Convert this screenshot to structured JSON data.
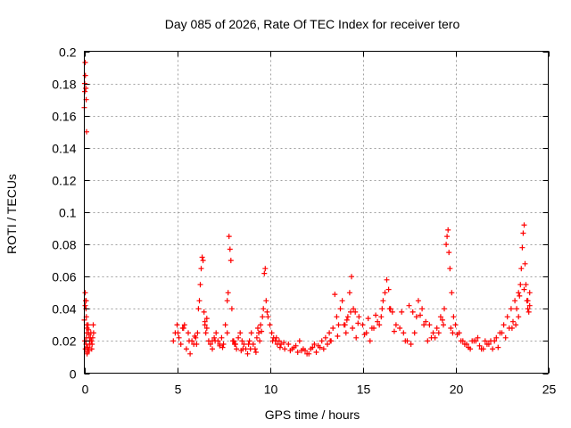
{
  "chart_data": {
    "type": "scatter",
    "title": "Day 085 of 2026, Rate Of TEC Index for receiver tero",
    "xlabel": "GPS time / hours",
    "ylabel": "ROTI / TECUs",
    "xlim": [
      0,
      25
    ],
    "ylim": [
      0,
      0.2
    ],
    "x_ticks": [
      0,
      5,
      10,
      15,
      20,
      25
    ],
    "x_tick_labels": [
      "0",
      "5",
      "10",
      "15",
      "20",
      "25"
    ],
    "y_ticks": [
      0,
      0.02,
      0.04,
      0.06,
      0.08,
      0.1,
      0.12,
      0.14,
      0.16,
      0.18,
      0.2
    ],
    "y_tick_labels": [
      "0",
      "0.02",
      "0.04",
      "0.06",
      "0.08",
      "0.1",
      "0.12",
      "0.14",
      "0.16",
      "0.18",
      "0.2"
    ],
    "grid": true,
    "legend": "none",
    "marker": "plus",
    "color": "#ff0000",
    "series": [
      {
        "x": [
          0.0,
          0.02,
          0.03,
          0.05,
          0.06,
          0.08,
          0.1,
          0.12,
          0.05,
          0.07,
          0.09,
          0.11,
          0.13,
          0.15,
          0.0,
          0.03,
          0.06,
          0.1,
          0.12,
          0.14,
          0.16,
          0.18,
          0.2,
          0.22,
          0.25,
          0.28,
          0.3,
          0.32,
          0.35,
          0.38,
          0.4,
          0.42,
          0.45,
          0.48,
          0.5,
          0.15,
          0.2,
          0.25,
          0.1,
          0.05,
          4.8,
          4.9,
          5.0,
          5.1,
          5.2,
          5.3,
          5.4,
          5.5,
          5.6,
          5.7,
          5.8,
          5.9,
          6.0,
          6.1,
          6.15,
          6.2,
          6.25,
          6.3,
          6.35,
          6.4,
          6.45,
          6.5,
          6.55,
          6.6,
          6.7,
          6.8,
          6.9,
          7.0,
          7.1,
          7.2,
          7.3,
          7.4,
          7.5,
          7.6,
          7.7,
          7.75,
          7.8,
          7.85,
          7.9,
          7.95,
          8.0,
          8.1,
          8.2,
          8.3,
          8.4,
          8.5,
          8.6,
          8.7,
          8.8,
          8.9,
          9.0,
          9.1,
          9.2,
          9.3,
          9.4,
          9.5,
          9.6,
          9.65,
          9.7,
          9.75,
          9.8,
          9.85,
          9.9,
          10.0,
          10.1,
          10.2,
          10.3,
          10.4,
          10.5,
          10.6,
          10.8,
          11.0,
          11.2,
          11.4,
          11.6,
          11.8,
          12.0,
          12.2,
          12.4,
          12.6,
          12.8,
          13.0,
          13.2,
          13.4,
          13.5,
          13.6,
          13.8,
          13.9,
          14.0,
          14.1,
          14.2,
          14.3,
          14.4,
          14.5,
          14.6,
          14.8,
          15.0,
          15.2,
          15.4,
          15.6,
          15.8,
          16.0,
          16.1,
          16.2,
          16.3,
          16.4,
          16.5,
          16.6,
          16.8,
          17.0,
          17.2,
          17.4,
          17.6,
          17.8,
          18.0,
          18.2,
          18.4,
          18.6,
          18.8,
          19.0,
          19.2,
          19.4,
          19.5,
          19.55,
          19.6,
          19.65,
          19.7,
          19.8,
          19.9,
          20.0,
          20.2,
          20.4,
          20.6,
          20.8,
          21.0,
          21.2,
          21.4,
          21.6,
          21.8,
          22.0,
          22.2,
          22.4,
          22.6,
          22.8,
          23.0,
          23.2,
          23.4,
          23.5,
          23.55,
          23.6,
          23.65,
          23.7,
          23.75,
          23.8,
          23.85,
          23.9,
          23.95,
          24.0,
          5.05,
          5.35,
          5.65,
          5.95,
          6.5,
          6.9,
          7.3,
          7.7,
          8.15,
          8.55,
          8.95,
          9.35,
          9.55,
          10.15,
          10.55,
          11.1,
          11.5,
          11.9,
          12.3,
          12.7,
          13.1,
          13.3,
          13.7,
          14.15,
          14.45,
          14.75,
          15.1,
          15.5,
          15.9,
          16.45,
          17.1,
          17.5,
          17.9,
          18.3,
          18.7,
          19.1,
          19.35,
          19.75,
          20.1,
          20.5,
          20.9,
          21.3,
          21.7,
          22.1,
          22.5,
          22.9,
          23.1,
          23.3,
          23.45,
          23.9,
          6.05,
          6.6,
          7.05,
          7.45,
          8.05,
          8.45,
          8.85,
          9.25,
          9.45,
          10.35,
          10.75,
          11.3,
          11.7,
          12.1,
          12.5,
          12.9,
          13.25,
          13.65,
          14.05,
          14.35,
          14.65,
          15.3,
          15.7,
          16.05,
          16.7,
          17.3,
          17.7,
          18.1,
          18.5,
          18.9,
          19.3,
          19.85,
          20.3,
          20.7,
          21.1,
          21.5,
          21.9,
          22.3,
          22.7,
          23.05,
          23.25,
          23.4,
          23.7,
          24.0
        ],
        "y": [
          0.165,
          0.18,
          0.175,
          0.193,
          0.185,
          0.177,
          0.17,
          0.15,
          0.05,
          0.045,
          0.04,
          0.035,
          0.03,
          0.028,
          0.033,
          0.02,
          0.015,
          0.018,
          0.022,
          0.025,
          0.013,
          0.016,
          0.03,
          0.027,
          0.024,
          0.02,
          0.018,
          0.022,
          0.025,
          0.02,
          0.015,
          0.018,
          0.022,
          0.03,
          0.025,
          0.012,
          0.016,
          0.014,
          0.045,
          0.042,
          0.02,
          0.025,
          0.03,
          0.022,
          0.018,
          0.028,
          0.03,
          0.015,
          0.025,
          0.012,
          0.02,
          0.018,
          0.022,
          0.025,
          0.04,
          0.045,
          0.055,
          0.065,
          0.072,
          0.07,
          0.038,
          0.03,
          0.025,
          0.028,
          0.02,
          0.018,
          0.015,
          0.022,
          0.025,
          0.02,
          0.018,
          0.022,
          0.018,
          0.03,
          0.045,
          0.05,
          0.085,
          0.077,
          0.07,
          0.04,
          0.02,
          0.018,
          0.015,
          0.022,
          0.025,
          0.02,
          0.018,
          0.015,
          0.012,
          0.02,
          0.025,
          0.018,
          0.015,
          0.022,
          0.025,
          0.03,
          0.035,
          0.04,
          0.062,
          0.065,
          0.045,
          0.038,
          0.035,
          0.03,
          0.025,
          0.022,
          0.02,
          0.018,
          0.02,
          0.018,
          0.015,
          0.018,
          0.015,
          0.017,
          0.02,
          0.015,
          0.012,
          0.015,
          0.018,
          0.017,
          0.02,
          0.022,
          0.025,
          0.028,
          0.049,
          0.035,
          0.04,
          0.045,
          0.03,
          0.025,
          0.035,
          0.05,
          0.06,
          0.04,
          0.038,
          0.035,
          0.03,
          0.025,
          0.02,
          0.028,
          0.032,
          0.035,
          0.045,
          0.05,
          0.058,
          0.052,
          0.04,
          0.038,
          0.03,
          0.028,
          0.025,
          0.02,
          0.018,
          0.025,
          0.045,
          0.04,
          0.032,
          0.03,
          0.025,
          0.028,
          0.035,
          0.04,
          0.08,
          0.085,
          0.089,
          0.075,
          0.065,
          0.05,
          0.035,
          0.03,
          0.025,
          0.02,
          0.018,
          0.015,
          0.02,
          0.022,
          0.015,
          0.02,
          0.018,
          0.015,
          0.022,
          0.025,
          0.03,
          0.035,
          0.04,
          0.045,
          0.05,
          0.055,
          0.065,
          0.078,
          0.087,
          0.092,
          0.068,
          0.055,
          0.045,
          0.04,
          0.038,
          0.05,
          0.025,
          0.028,
          0.02,
          0.023,
          0.032,
          0.02,
          0.017,
          0.025,
          0.018,
          0.015,
          0.015,
          0.028,
          0.026,
          0.02,
          0.016,
          0.014,
          0.013,
          0.014,
          0.016,
          0.016,
          0.018,
          0.02,
          0.03,
          0.033,
          0.028,
          0.031,
          0.024,
          0.028,
          0.03,
          0.04,
          0.038,
          0.042,
          0.035,
          0.03,
          0.022,
          0.025,
          0.03,
          0.028,
          0.024,
          0.018,
          0.02,
          0.017,
          0.018,
          0.02,
          0.025,
          0.028,
          0.032,
          0.04,
          0.048,
          0.045,
          0.018,
          0.034,
          0.02,
          0.016,
          0.02,
          0.014,
          0.018,
          0.013,
          0.02,
          0.022,
          0.019,
          0.016,
          0.014,
          0.012,
          0.013,
          0.015,
          0.02,
          0.023,
          0.03,
          0.038,
          0.022,
          0.034,
          0.036,
          0.04,
          0.026,
          0.02,
          0.038,
          0.036,
          0.02,
          0.022,
          0.033,
          0.025,
          0.02,
          0.016,
          0.02,
          0.015,
          0.02,
          0.016,
          0.022,
          0.028,
          0.03,
          0.035,
          0.052,
          0.042
        ]
      }
    ]
  }
}
